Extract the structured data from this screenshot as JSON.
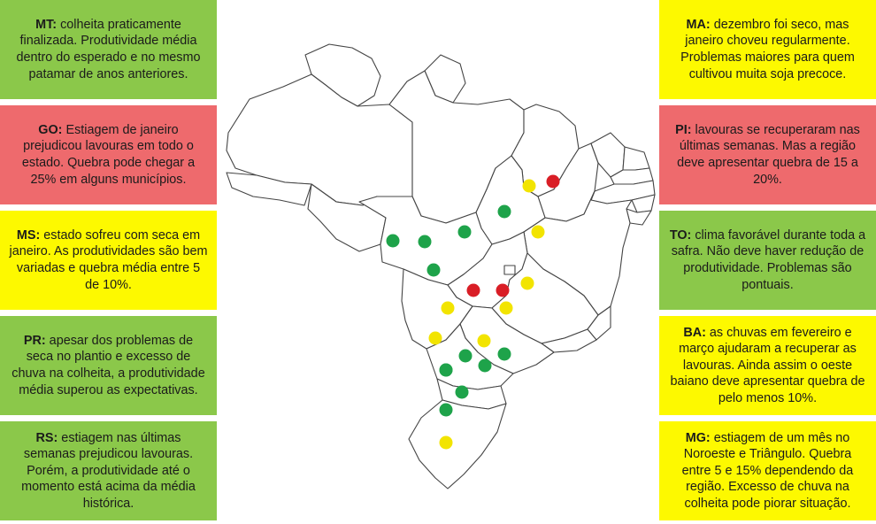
{
  "colors": {
    "green": "#8bc84a",
    "red": "#ee6a6d",
    "yellow": "#fdf900",
    "dot_green": "#1ea34a",
    "dot_yellow": "#f2e400",
    "dot_red": "#d91e26"
  },
  "notes_left": [
    {
      "state": "MT:",
      "text": "colheita praticamente finalizada. Produtividade média dentro do esperado e no mesmo patamar de anos anteriores.",
      "status": "green"
    },
    {
      "state": "GO:",
      "text": "Estiagem de janeiro prejudicou lavouras em todo o estado. Quebra pode chegar a 25% em alguns municípios.",
      "status": "red"
    },
    {
      "state": "MS:",
      "text": "estado sofreu com seca em janeiro. As produtividades são bem variadas e quebra média entre 5 de 10%.",
      "status": "yellow"
    },
    {
      "state": "PR:",
      "text": "apesar dos problemas de seca no plantio e excesso de chuva na colheita, a produtividade média superou as expectativas.",
      "status": "green"
    },
    {
      "state": "RS:",
      "text": "estiagem nas últimas semanas prejudicou lavouras. Porém, a produtividade até o momento está acima da média histórica.",
      "status": "green"
    }
  ],
  "notes_right": [
    {
      "state": "MA:",
      "text": "dezembro foi seco, mas janeiro choveu regularmente. Problemas maiores para quem cultivou muita soja precoce.",
      "status": "yellow"
    },
    {
      "state": "PI:",
      "text": "lavouras se recuperaram nas últimas semanas. Mas a região deve apresentar quebra de 15 a 20%.",
      "status": "red"
    },
    {
      "state": "TO:",
      "text": "clima favorável durante toda a safra. Não deve haver redução de produtividade. Problemas são pontuais.",
      "status": "green"
    },
    {
      "state": "BA:",
      "text": "as chuvas em fevereiro e março ajudaram a recuperar as lavouras. Ainda assim o oeste baiano deve apresentar quebra de pelo menos 10%.",
      "status": "yellow"
    },
    {
      "state": "MG:",
      "text": "estiagem de um mês no Noroeste e Triângulo. Quebra entre 5 e 15% dependendo da região. Excesso de chuva na colheita pode piorar situação.",
      "status": "yellow"
    }
  ],
  "map_dots": [
    {
      "region": "MT",
      "status": "green"
    },
    {
      "region": "MT",
      "status": "green"
    },
    {
      "region": "MT",
      "status": "green"
    },
    {
      "region": "MT",
      "status": "green"
    },
    {
      "region": "TO",
      "status": "green"
    },
    {
      "region": "MA",
      "status": "yellow"
    },
    {
      "region": "PI",
      "status": "red"
    },
    {
      "region": "BA",
      "status": "yellow"
    },
    {
      "region": "BA",
      "status": "yellow"
    },
    {
      "region": "GO",
      "status": "red"
    },
    {
      "region": "GO",
      "status": "red"
    },
    {
      "region": "MG",
      "status": "yellow"
    },
    {
      "region": "MS",
      "status": "yellow"
    },
    {
      "region": "MS",
      "status": "yellow"
    },
    {
      "region": "SP",
      "status": "yellow"
    },
    {
      "region": "PR",
      "status": "green"
    },
    {
      "region": "PR",
      "status": "green"
    },
    {
      "region": "PR",
      "status": "green"
    },
    {
      "region": "PR",
      "status": "green"
    },
    {
      "region": "PR",
      "status": "green"
    },
    {
      "region": "SC",
      "status": "green"
    },
    {
      "region": "RS",
      "status": "green"
    },
    {
      "region": "RS",
      "status": "yellow"
    }
  ]
}
